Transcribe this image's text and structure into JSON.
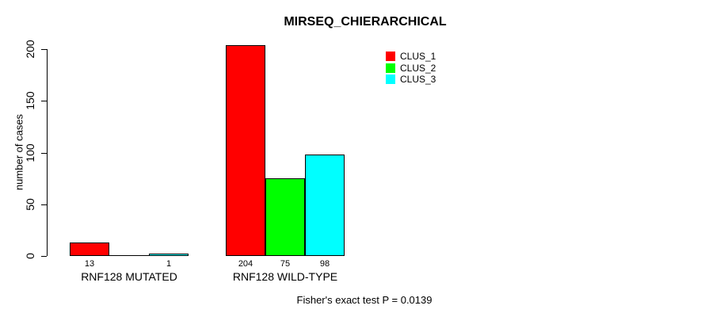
{
  "chart_data": {
    "type": "bar",
    "title": "MIRSEQ_CHIERARCHICAL",
    "xlabel": "",
    "ylabel": "number of cases",
    "yticks": [
      0,
      50,
      100,
      150,
      200
    ],
    "ylim": [
      0,
      204
    ],
    "grid": false,
    "legend_position": "top-right",
    "categories": [
      "RNF128 MUTATED",
      "RNF128 WILD-TYPE"
    ],
    "series": [
      {
        "name": "CLUS_1",
        "color": "#FF0000",
        "values": [
          13,
          204
        ]
      },
      {
        "name": "CLUS_2",
        "color": "#00FF00",
        "values": [
          0,
          75
        ]
      },
      {
        "name": "CLUS_3",
        "color": "#00FFFF",
        "values": [
          1,
          98
        ]
      }
    ],
    "bar_labels": [
      [
        "13",
        "",
        "1"
      ],
      [
        "204",
        "75",
        "98"
      ]
    ],
    "annotation": "Fisher's exact test P = 0.0139"
  },
  "colors": {
    "background": "#FFFFFF",
    "axis": "#000000",
    "text": "#000000"
  }
}
